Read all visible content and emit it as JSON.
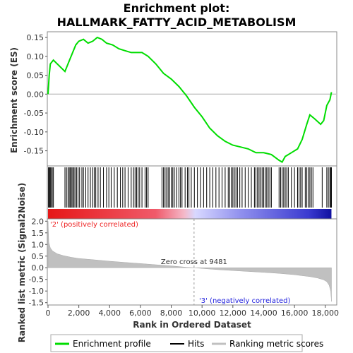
{
  "chart_data": {
    "type": "line",
    "title_line1": "Enrichment plot:",
    "title_line2": "HALLMARK_FATTY_ACID_METABOLISM",
    "enrichment": {
      "ylabel": "Enrichment score (ES)",
      "ylim": [
        -0.19,
        0.165
      ],
      "yticks": [
        "0.15",
        "0.10",
        "0.05",
        "0.00",
        "-0.05",
        "-0.10",
        "-0.15"
      ],
      "ytick_values": [
        0.15,
        0.1,
        0.05,
        0.0,
        -0.05,
        -0.1,
        -0.15
      ],
      "series_name": "Enrichment profile",
      "line_color": "#00dd00",
      "x": [
        0,
        80,
        150,
        350,
        1100,
        1400,
        1800,
        2000,
        2300,
        2600,
        2900,
        3200,
        3500,
        3800,
        4200,
        4600,
        5000,
        5400,
        5800,
        6100,
        6500,
        7000,
        7500,
        8000,
        8500,
        9000,
        9500,
        10000,
        10500,
        11000,
        11500,
        12000,
        12500,
        13000,
        13500,
        14000,
        14500,
        15000,
        15200,
        15400,
        15800,
        16200,
        16500,
        16800,
        17000,
        17300,
        17700,
        17900,
        18100,
        18300,
        18400
      ],
      "y": [
        0.0,
        0.05,
        0.08,
        0.09,
        0.06,
        0.09,
        0.13,
        0.14,
        0.145,
        0.135,
        0.14,
        0.15,
        0.145,
        0.135,
        0.13,
        0.12,
        0.115,
        0.11,
        0.11,
        0.11,
        0.1,
        0.08,
        0.055,
        0.04,
        0.02,
        -0.005,
        -0.035,
        -0.06,
        -0.09,
        -0.11,
        -0.125,
        -0.135,
        -0.14,
        -0.145,
        -0.155,
        -0.155,
        -0.16,
        -0.175,
        -0.18,
        -0.165,
        -0.155,
        -0.145,
        -0.12,
        -0.08,
        -0.055,
        -0.065,
        -0.08,
        -0.07,
        -0.03,
        -0.015,
        0.005
      ],
      "hits_label": "Hits",
      "hit_positions": [
        30,
        60,
        100,
        150,
        200,
        280,
        350,
        1100,
        1200,
        1300,
        1380,
        1450,
        1520,
        1600,
        1680,
        1750,
        1850,
        1950,
        2050,
        2200,
        2300,
        2450,
        2600,
        2750,
        2900,
        3000,
        3100,
        3250,
        3400,
        3600,
        3800,
        3950,
        4100,
        4300,
        4500,
        4700,
        4850,
        5000,
        5200,
        5400,
        5550,
        5650,
        5750,
        5850,
        5950,
        6100,
        6300,
        6400,
        6500,
        7400,
        7500,
        7600,
        7700,
        7800,
        7900,
        8000,
        8100,
        8200,
        8350,
        8500,
        8600,
        8700,
        8900,
        9050,
        9150,
        9300,
        9500,
        9700,
        9900,
        10100,
        10300,
        10500,
        10700,
        10900,
        11100,
        11300,
        11500,
        11700,
        11800,
        11900,
        12000,
        12100,
        12200,
        12300,
        12450,
        12600,
        12800,
        13000,
        13200,
        13400,
        13500,
        13600,
        13700,
        13800,
        13900,
        14000,
        14100,
        14200,
        14300,
        14400,
        14500,
        15000,
        15100,
        15200,
        15300,
        15400,
        15500,
        15600,
        15800,
        16000,
        16200,
        16300,
        16400,
        16500,
        16700,
        16800,
        16900,
        17000,
        17100,
        17200,
        17800,
        18100,
        18200,
        18300,
        18350,
        18400
      ],
      "bar_colors_stops": [
        "#e61717",
        "#f4a5b4",
        "#c8c8ff",
        "#1a1aba"
      ]
    },
    "metric": {
      "ylabel": "Ranked list metric (Signal2Noise)",
      "ylim": [
        -1.6,
        2.1
      ],
      "yticks": [
        "2.0",
        "1.5",
        "1.0",
        "0.5",
        "0.0",
        "-0.5",
        "-1.0",
        "-1.5"
      ],
      "ytick_values": [
        2.0,
        1.5,
        1.0,
        0.5,
        0.0,
        -0.5,
        -1.0,
        -1.5
      ],
      "series_name": "Ranking metric scores",
      "fill_color": "#c0c0c0",
      "x": [
        0,
        50,
        150,
        300,
        600,
        1000,
        1500,
        2000,
        3000,
        4000,
        5000,
        6000,
        7000,
        8000,
        9000,
        9481,
        10000,
        11000,
        12000,
        13000,
        14000,
        15000,
        16000,
        16500,
        17000,
        17500,
        17900,
        18100,
        18250,
        18350,
        18400
      ],
      "y": [
        2.0,
        1.1,
        0.85,
        0.72,
        0.6,
        0.52,
        0.45,
        0.4,
        0.34,
        0.28,
        0.23,
        0.18,
        0.13,
        0.08,
        0.02,
        0.0,
        -0.03,
        -0.08,
        -0.12,
        -0.16,
        -0.2,
        -0.24,
        -0.3,
        -0.34,
        -0.38,
        -0.44,
        -0.52,
        -0.6,
        -0.75,
        -1.0,
        -1.45
      ],
      "zero_cross_label": "Zero cross at 9481",
      "zero_cross": 9481,
      "pos_label": "'2' (positively correlated)",
      "pos_color": "#ee2222",
      "neg_label": "'3' (negatively correlated)",
      "neg_color": "#2222dd"
    },
    "xaxis": {
      "label": "Rank in Ordered Dataset",
      "xlim": [
        0,
        18700
      ],
      "ticks": [
        "0",
        "2,000",
        "4,000",
        "6,000",
        "8,000",
        "10,000",
        "12,000",
        "14,000",
        "16,000",
        "18,000"
      ],
      "tick_values": [
        0,
        2000,
        4000,
        6000,
        8000,
        10000,
        12000,
        14000,
        16000,
        18000
      ],
      "n_genes": 18400
    },
    "legend": {
      "items": [
        "Enrichment profile",
        "Hits",
        "Ranking metric scores"
      ],
      "placement": "bottom"
    }
  }
}
